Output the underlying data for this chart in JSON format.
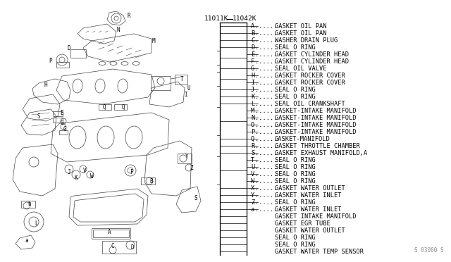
{
  "bg_color": "#ffffff",
  "part_numbers": [
    "11011K",
    "11042K"
  ],
  "legend_items": [
    [
      "A",
      "GASKET OIL PAN"
    ],
    [
      "B",
      "GASKET OIL PAN"
    ],
    [
      "C",
      "WASHER DRAIN PLUG"
    ],
    [
      "D",
      "SEAL O RING"
    ],
    [
      "E",
      "GASKET CYLINDER HEAD"
    ],
    [
      "F",
      "GASKET CYLINDER HEAD"
    ],
    [
      "G",
      "SEAL OIL VALVE"
    ],
    [
      "H",
      "GASKET ROCKER COVER"
    ],
    [
      "I",
      "GASKET ROCKER COVER"
    ],
    [
      "J",
      "SEAL O RING"
    ],
    [
      "K",
      "SEAL O RING"
    ],
    [
      "L",
      "SEAL OIL CRANKSHAFT"
    ],
    [
      "M",
      "GASKET-INTAKE MANIFOLD"
    ],
    [
      "N",
      "GASKET-INTAKE MANIFOLD"
    ],
    [
      "O",
      "GASKET-INTAKE MANIFOLD"
    ],
    [
      "P",
      "GASKET-INTAKE MANIFOLD"
    ],
    [
      "Q",
      "GASKET-MANIFOLD"
    ],
    [
      "R",
      "GASKET THROTTLE CHAMBER"
    ],
    [
      "S",
      "GASKET EXHAUST MANIFOLD,A"
    ],
    [
      "T",
      "SEAL O RING"
    ],
    [
      "U",
      "SEAL O RING"
    ],
    [
      "V",
      "SEAL O RING"
    ],
    [
      "W",
      "SEAL O RING"
    ],
    [
      "X",
      "GASKET WATER OUTLET"
    ],
    [
      "Y",
      "GASKET WATER INLET"
    ],
    [
      "Z",
      "SEAL O RING"
    ],
    [
      "a",
      "GASKET WATER INLET"
    ],
    [
      "",
      "GASKET INTAKE MANIFOLD"
    ],
    [
      "",
      "GASKET EGR TUBE"
    ],
    [
      "",
      "GASKET WATER OUTLET"
    ],
    [
      "",
      "SEAL O RING"
    ],
    [
      "",
      "SEAL O RING"
    ],
    [
      "",
      "GASKET WATER TEMP SENSOR"
    ]
  ],
  "footer_text": "S 03000 S",
  "font_size_legend": 6.2,
  "font_size_partnum": 6.8,
  "font_family": "monospace",
  "ec": "#444444",
  "lw": 0.5,
  "gray": "#888888"
}
